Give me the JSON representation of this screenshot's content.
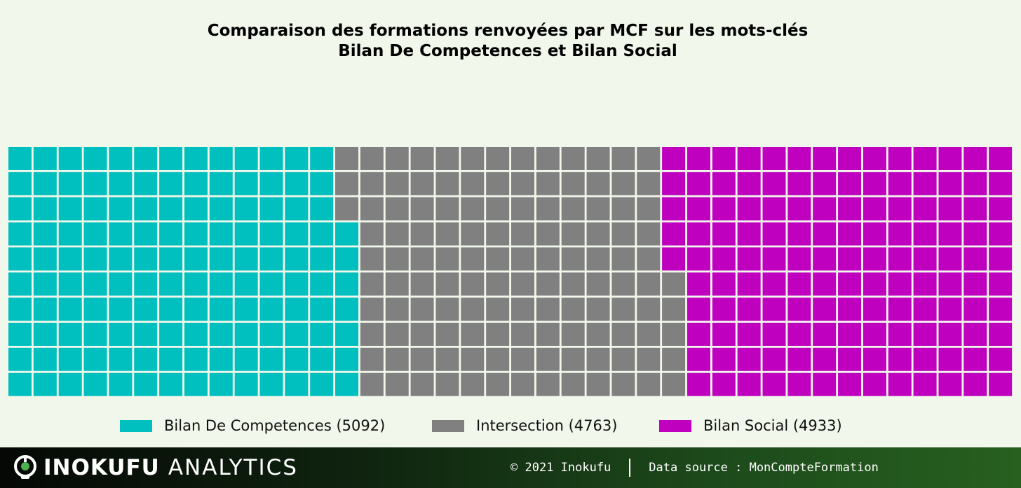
{
  "chart_data": {
    "type": "waffle",
    "title_lines": [
      "Comparaison des formations renvoyées par MCF sur les mots-clés",
      "Bilan De Competences et Bilan Social"
    ],
    "grid": {
      "rows": 10,
      "columns": 40,
      "fill_order": "column-wise, bottom to top, left to right"
    },
    "series": [
      {
        "name": "Bilan De Competences",
        "value": 5092,
        "cells": 137,
        "color": "#00bfbf"
      },
      {
        "name": "Intersection",
        "value": 4763,
        "cells": 128,
        "color": "#808080"
      },
      {
        "name": "Bilan Social",
        "value": 4933,
        "cells": 135,
        "color": "#bf00bf"
      }
    ],
    "legend": [
      {
        "label": "Bilan De Competences (5092)",
        "color": "#00bfbf"
      },
      {
        "label": "Intersection (4763)",
        "color": "#808080"
      },
      {
        "label": "Bilan Social (4933)",
        "color": "#bf00bf"
      }
    ],
    "legend_position": "bottom"
  },
  "footer": {
    "brand_strong": "INOKUFU",
    "brand_light": "ANALYTICS",
    "copyright": "© 2021 Inokufu",
    "data_source": "Data source : MonCompteFormation"
  },
  "colors": {
    "background": "#f1f7ea",
    "cell_border": "#ffffff"
  }
}
